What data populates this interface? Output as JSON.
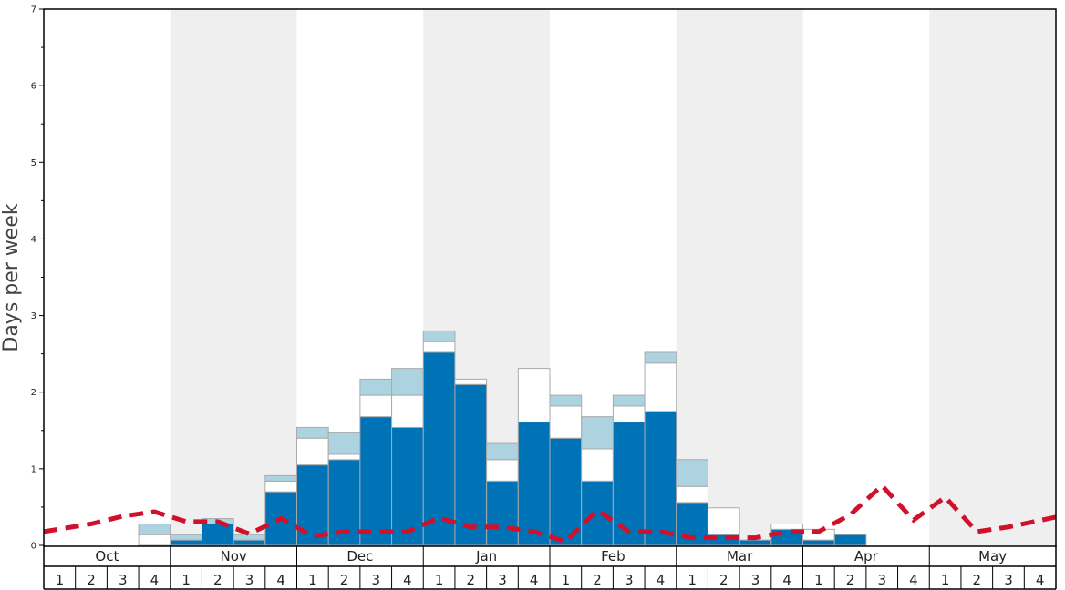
{
  "chart_data": {
    "type": "bar",
    "ylabel": "Days per week",
    "ylim": [
      0,
      7
    ],
    "yticks": [
      0,
      1,
      2,
      3,
      4,
      5,
      6,
      7
    ],
    "months": [
      "Oct",
      "Nov",
      "Dec",
      "Jan",
      "Feb",
      "Mar",
      "Apr",
      "May"
    ],
    "week_labels": [
      "1",
      "2",
      "3",
      "4"
    ],
    "colors": {
      "dark_series": "#0073b7",
      "white_series": "#ffffff",
      "light_series": "#add3e0",
      "line": "#d0112b",
      "shade": "#efefef",
      "bar_edge": "#aaaaaa"
    },
    "series": [
      {
        "values": [
          0,
          0,
          0,
          0,
          0.07,
          0.28,
          0.07,
          0.7,
          1.05,
          1.12,
          1.68,
          1.54,
          2.52,
          2.1,
          0.84,
          1.61,
          1.4,
          0.84,
          1.61,
          1.75,
          0.56,
          0.14,
          0.07,
          0.21,
          0.07,
          0.14,
          0,
          0,
          0,
          0,
          0,
          0
        ]
      },
      {
        "values": [
          0,
          0,
          0,
          0.14,
          0,
          0,
          0,
          0.14,
          0.35,
          0.07,
          0.28,
          0.42,
          0.14,
          0.07,
          0.28,
          0.7,
          0.42,
          0.42,
          0.21,
          0.63,
          0.21,
          0.35,
          0,
          0.07,
          0.14,
          0,
          0,
          0,
          0,
          0,
          0,
          0
        ]
      },
      {
        "values": [
          0,
          0,
          0,
          0.14,
          0.07,
          0.07,
          0.07,
          0.07,
          0.14,
          0.28,
          0.21,
          0.35,
          0.14,
          0,
          0.21,
          0,
          0.14,
          0.42,
          0.14,
          0.14,
          0.35,
          0,
          0,
          0,
          0,
          0,
          0,
          0,
          0,
          0,
          0,
          0
        ]
      },
      {
        "type": "line",
        "values": [
          0.18,
          0.28,
          0.38,
          0.44,
          0.31,
          0.31,
          0.15,
          0.35,
          0.12,
          0.18,
          0.18,
          0.18,
          0.36,
          0.24,
          0.24,
          0.18,
          0.05,
          0.46,
          0.18,
          0.18,
          0.1,
          0.1,
          0.1,
          0.18,
          0.18,
          0.4,
          0.78,
          0.33,
          0.63,
          0.18,
          0.24,
          0.37
        ]
      }
    ]
  }
}
